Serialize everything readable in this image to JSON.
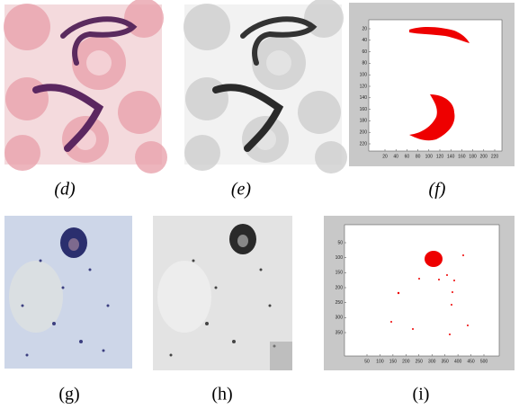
{
  "figure": {
    "captions": [
      "(d)",
      "(e)",
      "(f)",
      "(g)",
      "(h)",
      "(i)"
    ],
    "plot_f": {
      "xticks": [
        20,
        40,
        60,
        80,
        100,
        120,
        140,
        160,
        180,
        200,
        220
      ],
      "yticks": [
        20,
        40,
        60,
        80,
        100,
        120,
        140,
        160,
        180,
        200,
        220
      ]
    },
    "plot_i": {
      "xticks": [
        50,
        100,
        150,
        200,
        250,
        300,
        350,
        400,
        450,
        500
      ],
      "yticks": [
        50,
        100,
        150,
        200,
        250,
        300,
        350
      ]
    }
  }
}
